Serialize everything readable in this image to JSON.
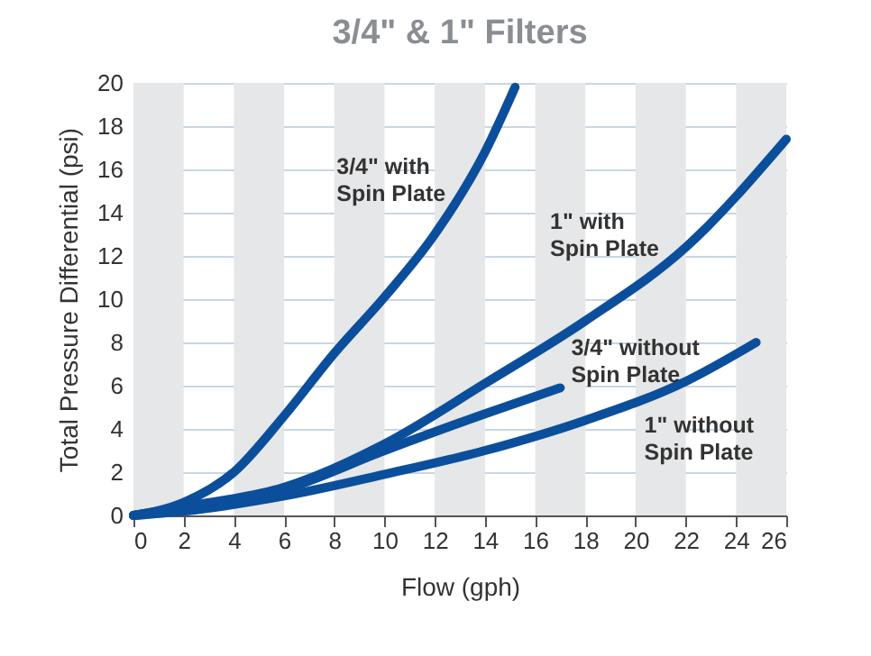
{
  "chart_data": {
    "type": "line",
    "title": "3/4\" & 1\" Filters",
    "xlabel": "Flow (gph)",
    "ylabel": "Total Pressure Differential (psi)",
    "xlim": [
      0,
      26
    ],
    "xticks": [
      0,
      2,
      4,
      6,
      8,
      10,
      12,
      14,
      16,
      18,
      20,
      22,
      24,
      26
    ],
    "ylim": [
      0,
      20
    ],
    "yticks": [
      0,
      2,
      4,
      6,
      8,
      10,
      12,
      14,
      16,
      18,
      20
    ],
    "grid": "y",
    "marker": "none",
    "line_style": "solid",
    "bands": [
      {
        "axis": "x",
        "from": 0,
        "to": 2,
        "color": "#e6e7e8"
      },
      {
        "axis": "x",
        "from": 4,
        "to": 6,
        "color": "#e6e7e8"
      },
      {
        "axis": "x",
        "from": 8,
        "to": 10,
        "color": "#e6e7e8"
      },
      {
        "axis": "x",
        "from": 12,
        "to": 14,
        "color": "#e6e7e8"
      },
      {
        "axis": "x",
        "from": 16,
        "to": 18,
        "color": "#e6e7e8"
      },
      {
        "axis": "x",
        "from": 20,
        "to": 22,
        "color": "#e6e7e8"
      },
      {
        "axis": "x",
        "from": 24,
        "to": 26,
        "color": "#e6e7e8"
      }
    ],
    "series": [
      {
        "name": "3/4\" with\nSpin Plate",
        "color": "#0b4f9c",
        "x": [
          0,
          2,
          4,
          6,
          8,
          10,
          12,
          14,
          15.2
        ],
        "values": [
          0,
          0.6,
          2,
          4.6,
          7.5,
          10.1,
          13,
          16.8,
          19.8
        ]
      },
      {
        "name": "1\" with\nSpin Plate",
        "color": "#0b4f9c",
        "x": [
          0,
          2,
          6,
          10,
          14,
          18,
          22,
          26
        ],
        "values": [
          0,
          0.4,
          1.3,
          3.3,
          6.1,
          9,
          12.4,
          17.4
        ]
      },
      {
        "name": "3/4\" without\nSpin Plate",
        "color": "#0b4f9c",
        "x": [
          0,
          2,
          6,
          10,
          14,
          17
        ],
        "values": [
          0,
          0.3,
          1.2,
          3,
          4.7,
          5.9
        ]
      },
      {
        "name": "1\" without\nSpin Plate",
        "color": "#0b4f9c",
        "x": [
          0,
          2,
          6,
          10,
          14,
          18,
          22,
          24.8
        ],
        "values": [
          0,
          0.2,
          0.9,
          1.9,
          3,
          4.4,
          6.2,
          8
        ]
      }
    ]
  }
}
